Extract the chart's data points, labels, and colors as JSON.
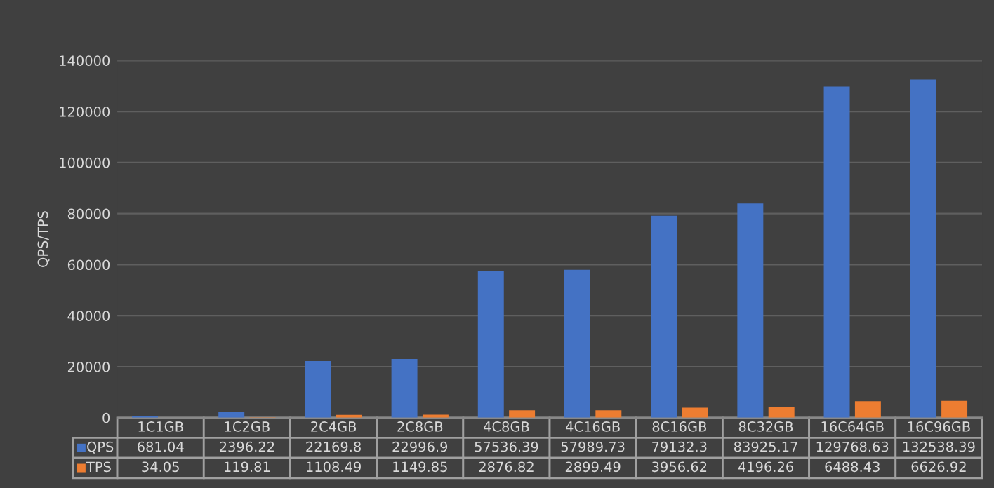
{
  "chart_data": {
    "type": "bar",
    "ylabel": "QPS/TPS",
    "categories": [
      "1C1GB",
      "1C2GB",
      "2C4GB",
      "2C8GB",
      "4C8GB",
      "4C16GB",
      "8C16GB",
      "8C32GB",
      "16C64GB",
      "16C96GB"
    ],
    "series": [
      {
        "name": "QPS",
        "color": "#4472c4",
        "values": [
          681.04,
          2396.22,
          22169.8,
          22996.9,
          57536.39,
          57989.73,
          79132.3,
          83925.17,
          129768.63,
          132538.39
        ]
      },
      {
        "name": "TPS",
        "color": "#ed7d31",
        "values": [
          34.05,
          119.81,
          1108.49,
          1149.85,
          2876.82,
          2899.49,
          3956.62,
          4196.26,
          6488.43,
          6626.92
        ]
      }
    ],
    "ylim": [
      0,
      140000
    ],
    "yticks": [
      0,
      20000,
      40000,
      60000,
      80000,
      100000,
      120000,
      140000
    ],
    "grid": "y",
    "legend": "bottom left",
    "data_labels": true
  }
}
